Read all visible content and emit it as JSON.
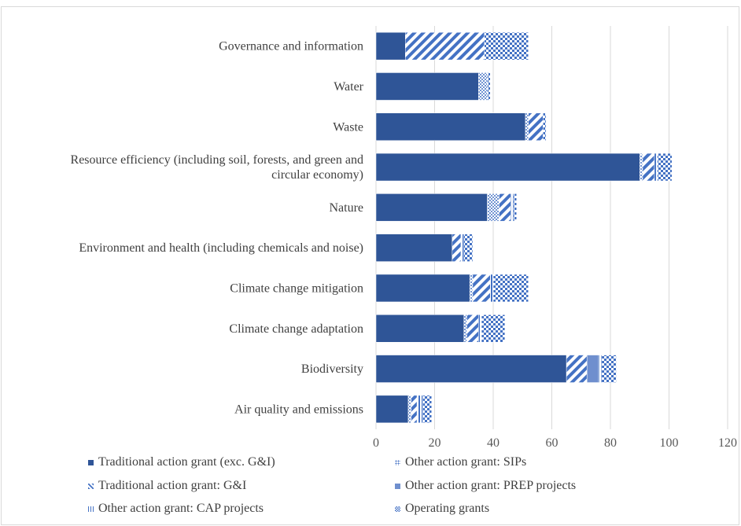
{
  "chart_data": {
    "type": "bar",
    "orientation": "horizontal",
    "stacked": true,
    "title": "",
    "xlabel": "",
    "ylabel": "",
    "xlim": [
      0,
      120
    ],
    "x_ticks": [
      "0",
      "20",
      "40",
      "60",
      "80",
      "100",
      "120"
    ],
    "grid": true,
    "legend_position": "bottom",
    "categories": [
      "Governance and information",
      "Water",
      "Waste",
      "Resource efficiency (including soil, forests, and green and circular economy)",
      "Nature",
      "Environment and health (including chemicals and noise)",
      "Climate change mitigation",
      "Climate change adaptation",
      "Biodiversity",
      "Air quality and emissions"
    ],
    "category_lines": [
      [
        "Governance and information"
      ],
      [
        "Water"
      ],
      [
        "Waste"
      ],
      [
        "Resource efficiency (including soil, forests, and green and",
        "circular economy)"
      ],
      [
        "Nature"
      ],
      [
        "Environment and health (including chemicals and noise)"
      ],
      [
        "Climate change mitigation"
      ],
      [
        "Climate change adaptation"
      ],
      [
        "Biodiversity"
      ],
      [
        "Air quality and emissions"
      ]
    ],
    "series": [
      {
        "name": "Traditional action grant (exc. G&I)",
        "pattern": "solid",
        "values": [
          10,
          35,
          51,
          90,
          38,
          26,
          32,
          30,
          65,
          11
        ]
      },
      {
        "name": "Other action grant: SIPs",
        "pattern": "dots",
        "values": [
          0,
          3,
          1,
          1,
          4,
          0,
          1,
          1,
          0,
          1
        ]
      },
      {
        "name": "Traditional action grant: G&I",
        "pattern": "diagonal",
        "values": [
          27,
          0,
          5,
          4,
          4,
          3,
          6,
          4,
          7,
          2
        ]
      },
      {
        "name": "Other action grant: PREP projects",
        "pattern": "grey",
        "values": [
          0,
          0,
          0,
          0,
          0,
          0,
          0,
          0,
          4,
          0
        ]
      },
      {
        "name": "Other action grant: CAP projects",
        "pattern": "vlines",
        "values": [
          0,
          0,
          0,
          1,
          1,
          1,
          1,
          1,
          1,
          2
        ]
      },
      {
        "name": "Operating grants",
        "pattern": "check",
        "values": [
          15,
          1,
          1,
          5,
          1,
          3,
          12,
          8,
          5,
          3
        ]
      }
    ],
    "colors": {
      "dark": "#2f5597",
      "mid": "#4472c4",
      "grey": "#6f8fce",
      "grid": "#d9d9d9"
    }
  }
}
